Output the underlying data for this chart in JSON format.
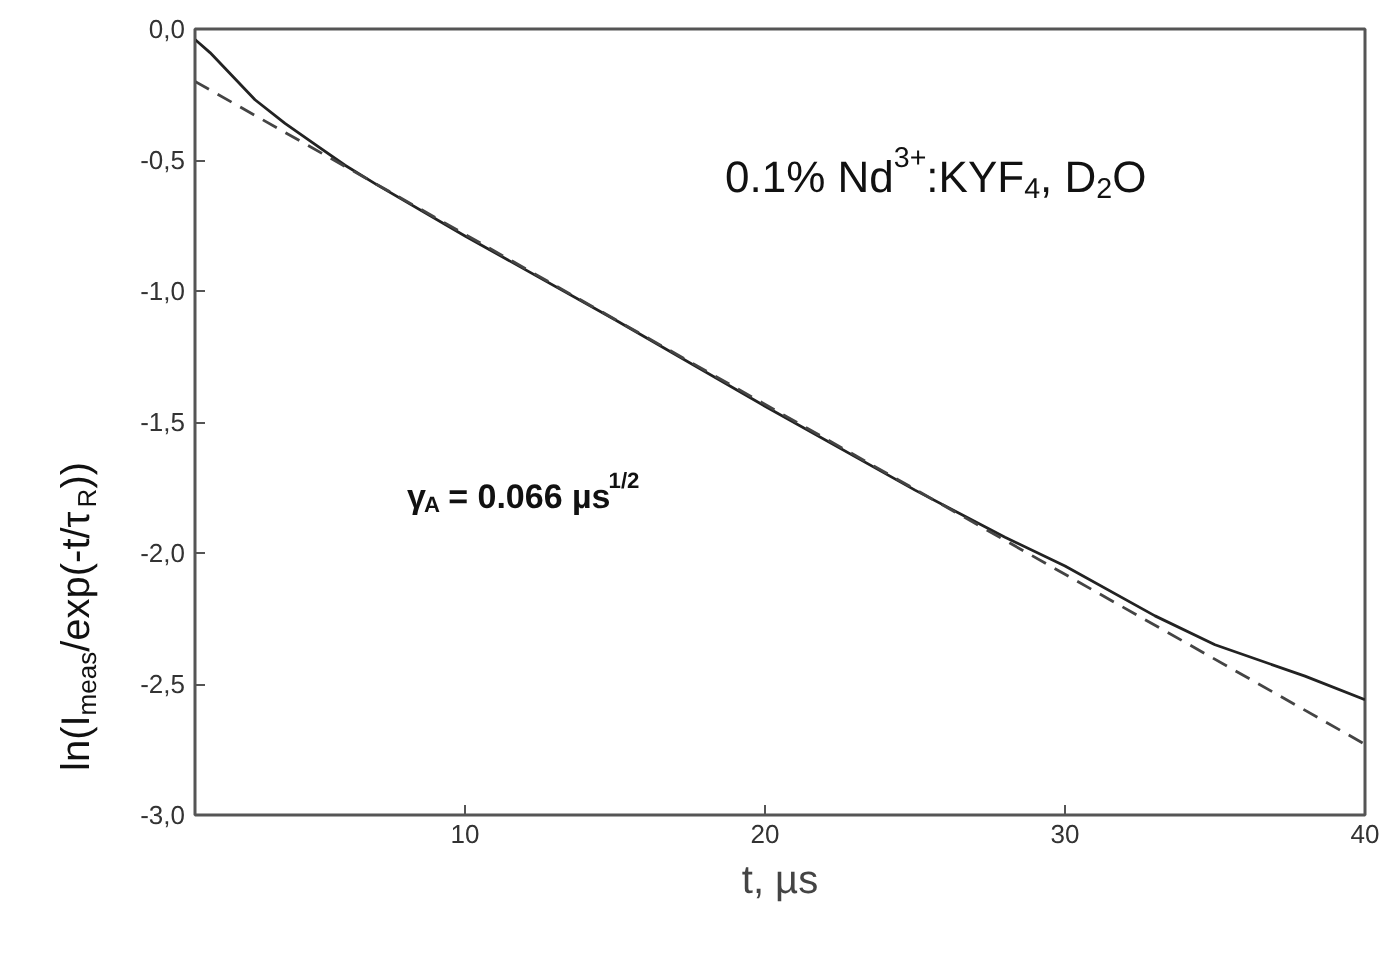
{
  "chart_data": {
    "type": "line",
    "xlabel": "t, µs",
    "ylabel": "ln(I$_{meas}$/exp(-t/τ$_{R}$))",
    "annotations": [
      "0.1% Nd$^{3+}$:KYF$_{4}$, D$_{2}$O",
      "γ$_{A}$ = 0.066 µs$^{1/2}$"
    ],
    "series": [
      {
        "color": "#222222",
        "line_style": "solid",
        "x": [
          1,
          1.5,
          2,
          3,
          4,
          5,
          6,
          7,
          10,
          15,
          20,
          25,
          28,
          30,
          33,
          35,
          38,
          40
        ],
        "values": [
          -0.04,
          -0.09,
          -0.15,
          -0.27,
          -0.36,
          -0.44,
          -0.52,
          -0.59,
          -0.79,
          -1.11,
          -1.44,
          -1.76,
          -1.94,
          -2.05,
          -2.24,
          -2.35,
          -2.47,
          -2.56
        ]
      },
      {
        "color": "#444444",
        "line_style": "dashed",
        "x": [
          1,
          40
        ],
        "values": [
          -0.2,
          -2.73
        ]
      }
    ],
    "xlim": [
      1,
      40
    ],
    "ylim": [
      -3,
      0
    ],
    "xticks": [
      10,
      20,
      30,
      40
    ],
    "yticks": [
      {
        "value": 0,
        "label": "0,0"
      },
      {
        "value": -0.5,
        "label": "-0,5"
      },
      {
        "value": -1,
        "label": "-1,0"
      },
      {
        "value": -1.5,
        "label": "-1,5"
      },
      {
        "value": -2,
        "label": "-2,0"
      },
      {
        "value": -2.5,
        "label": "-2,5"
      },
      {
        "value": -3,
        "label": "-3,0"
      }
    ],
    "grid": false,
    "marker": "none"
  }
}
